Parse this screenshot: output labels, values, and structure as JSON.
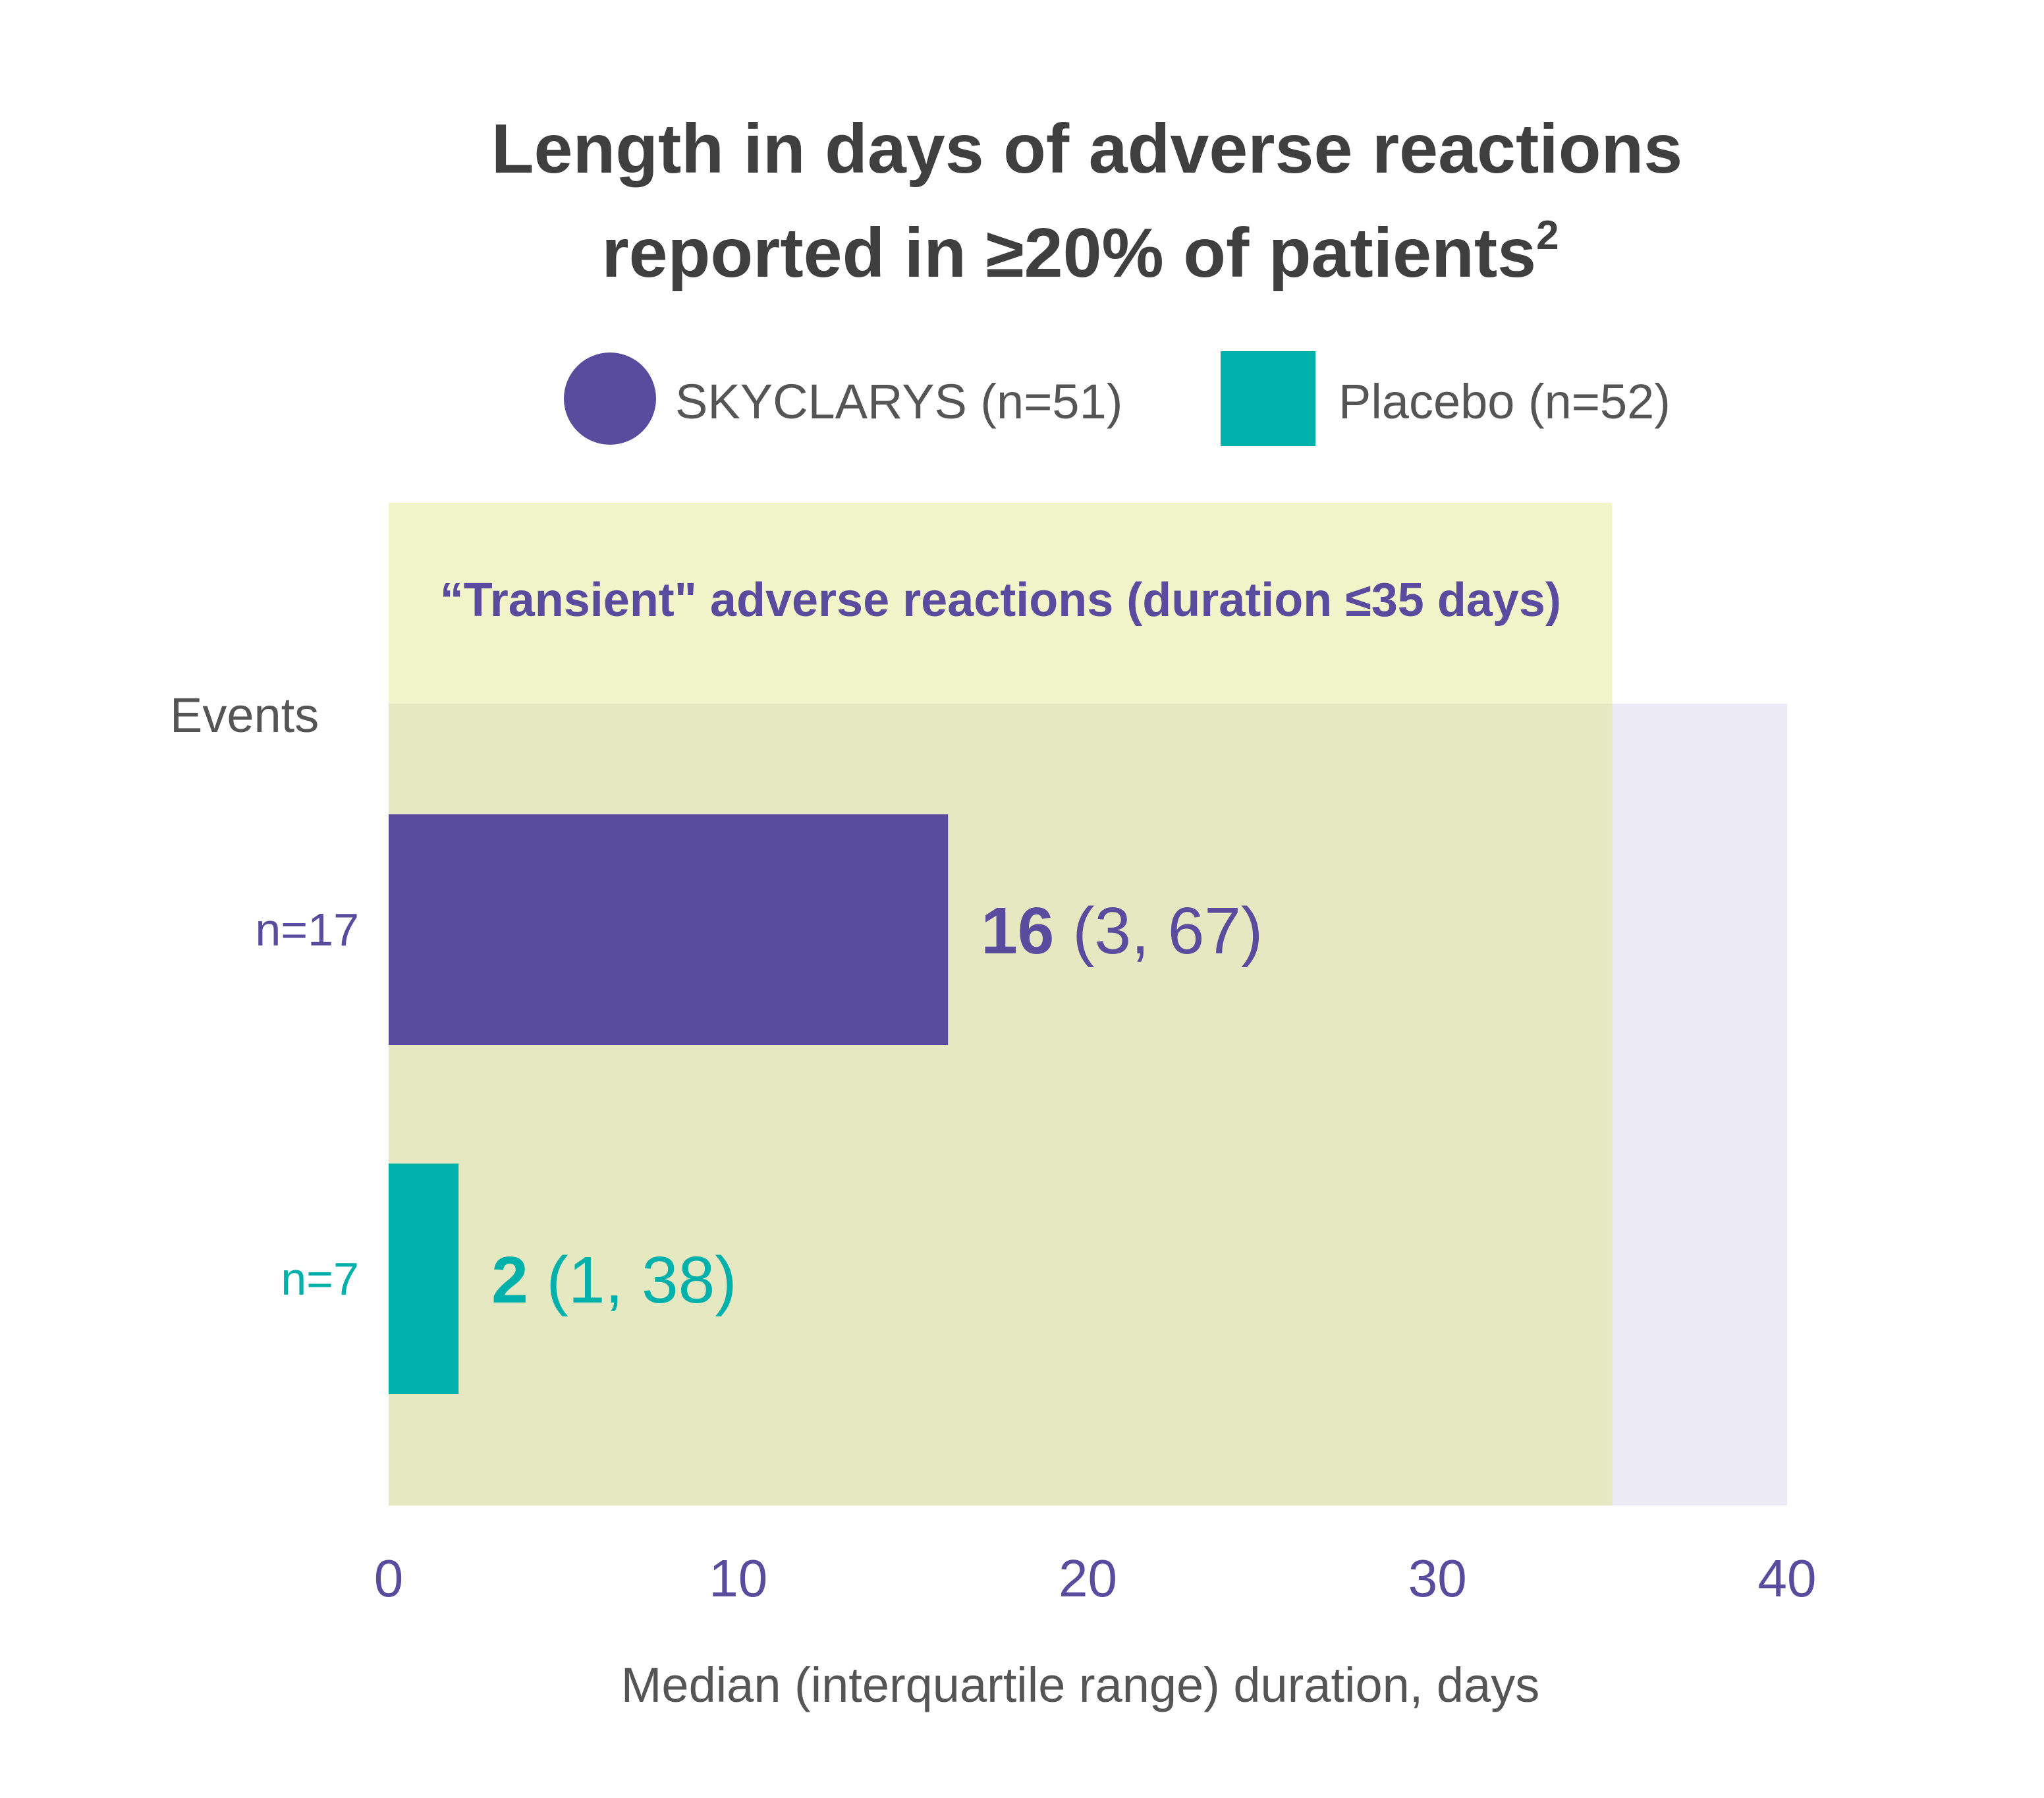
{
  "title": {
    "line1": "Length in days of adverse reactions",
    "line2": "reported in ≥20% of patients",
    "superscript": "2"
  },
  "legend": [
    {
      "label": "SKYCLARYS (n=51)",
      "color": "#594b9e",
      "shape": "circle"
    },
    {
      "label": "Placebo (n=52)",
      "color": "#00b0aa",
      "shape": "square"
    }
  ],
  "chart_data": {
    "type": "bar",
    "orientation": "horizontal",
    "xlabel": "Median (interquartile range) duration, days",
    "ylabel": "Events",
    "xlim": [
      0,
      40
    ],
    "xticks": [
      0,
      10,
      20,
      30,
      40
    ],
    "threshold_band": {
      "label": "“Transient\" adverse reactions (duration ≤35 days)",
      "x_end": 35,
      "color": "#f2f5c9",
      "plot_color": "#e6e8c1"
    },
    "plot_background_color": "#ecebf5",
    "series": [
      {
        "name": "SKYCLARYS (n=51)",
        "events": "n=17",
        "median": 16,
        "iqr": "(3, 67)",
        "median_label": "16",
        "color": "#594b9e"
      },
      {
        "name": "Placebo (n=52)",
        "events": "n=7",
        "median": 2,
        "iqr": "(1, 38)",
        "median_label": "2",
        "color": "#00b0aa"
      }
    ]
  }
}
